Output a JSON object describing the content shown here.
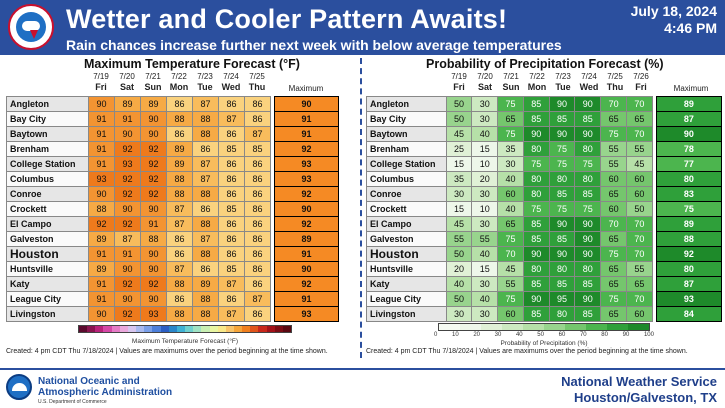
{
  "header": {
    "logo_text": "NATIONAL WEATHER SERVICE",
    "title": "Wetter and Cooler Pattern Awaits!",
    "subtitle": "Rain chances increase further next week with below average temperatures",
    "date": "July 18, 2024",
    "time": "4:46 PM"
  },
  "temp": {
    "title": "Maximum Temperature Forecast (°F)",
    "days": [
      {
        "date": "7/19",
        "day": "Fri"
      },
      {
        "date": "7/20",
        "day": "Sat"
      },
      {
        "date": "7/21",
        "day": "Sun"
      },
      {
        "date": "7/22",
        "day": "Mon"
      },
      {
        "date": "7/23",
        "day": "Tue"
      },
      {
        "date": "7/24",
        "day": "Wed"
      },
      {
        "date": "7/25",
        "day": "Thu"
      }
    ],
    "max_label": "Maximum",
    "rows": [
      {
        "city": "Angleton",
        "values": [
          "90",
          "89",
          "89",
          "86",
          "87",
          "86",
          "86"
        ],
        "max": "90"
      },
      {
        "city": "Bay City",
        "values": [
          "91",
          "91",
          "90",
          "88",
          "88",
          "87",
          "86"
        ],
        "max": "91"
      },
      {
        "city": "Baytown",
        "values": [
          "91",
          "90",
          "90",
          "86",
          "88",
          "86",
          "87"
        ],
        "max": "91"
      },
      {
        "city": "Brenham",
        "values": [
          "91",
          "92",
          "92",
          "89",
          "86",
          "85",
          "85"
        ],
        "max": "92"
      },
      {
        "city": "College Station",
        "values": [
          "91",
          "93",
          "92",
          "89",
          "87",
          "86",
          "86"
        ],
        "max": "93"
      },
      {
        "city": "Columbus",
        "values": [
          "93",
          "92",
          "92",
          "88",
          "87",
          "86",
          "86"
        ],
        "max": "93"
      },
      {
        "city": "Conroe",
        "values": [
          "90",
          "92",
          "92",
          "88",
          "88",
          "86",
          "86"
        ],
        "max": "92"
      },
      {
        "city": "Crockett",
        "values": [
          "88",
          "90",
          "90",
          "87",
          "86",
          "85",
          "86"
        ],
        "max": "90"
      },
      {
        "city": "El Campo",
        "values": [
          "92",
          "92",
          "91",
          "87",
          "88",
          "86",
          "86"
        ],
        "max": "92"
      },
      {
        "city": "Galveston",
        "values": [
          "89",
          "87",
          "88",
          "86",
          "87",
          "86",
          "86"
        ],
        "max": "89"
      },
      {
        "city": "Houston",
        "values": [
          "91",
          "91",
          "90",
          "86",
          "88",
          "86",
          "86"
        ],
        "max": "91"
      },
      {
        "city": "Huntsville",
        "values": [
          "89",
          "90",
          "90",
          "87",
          "86",
          "85",
          "86"
        ],
        "max": "90"
      },
      {
        "city": "Katy",
        "values": [
          "91",
          "92",
          "92",
          "88",
          "89",
          "87",
          "86"
        ],
        "max": "92"
      },
      {
        "city": "League City",
        "values": [
          "91",
          "90",
          "90",
          "86",
          "88",
          "86",
          "87"
        ],
        "max": "91"
      },
      {
        "city": "Livingston",
        "values": [
          "90",
          "92",
          "93",
          "88",
          "88",
          "87",
          "86"
        ],
        "max": "93"
      }
    ],
    "colorbar_label": "Maximum Temperature Forecast (°F)",
    "created": "Created: 4 pm CDT Thu 7/18/2024  |  Values are maximums over the period beginning at the time shown.",
    "colors": {
      "hot": "#f07f1f",
      "warm": "#f5a53b",
      "mild": "#f8c46a",
      "max": "#f58a24"
    }
  },
  "pop": {
    "title": "Probability of Precipitation Forecast (%)",
    "days": [
      {
        "date": "7/19",
        "day": "Fri"
      },
      {
        "date": "7/20",
        "day": "Sat"
      },
      {
        "date": "7/21",
        "day": "Sun"
      },
      {
        "date": "7/22",
        "day": "Mon"
      },
      {
        "date": "7/23",
        "day": "Tue"
      },
      {
        "date": "7/24",
        "day": "Wed"
      },
      {
        "date": "7/25",
        "day": "Thu"
      },
      {
        "date": "7/26",
        "day": "Fri"
      }
    ],
    "max_label": "Maximum",
    "rows": [
      {
        "city": "Angleton",
        "values": [
          "50",
          "30",
          "75",
          "85",
          "90",
          "90",
          "70",
          "70"
        ],
        "max": "89"
      },
      {
        "city": "Bay City",
        "values": [
          "50",
          "30",
          "65",
          "85",
          "85",
          "85",
          "65",
          "65"
        ],
        "max": "87"
      },
      {
        "city": "Baytown",
        "values": [
          "45",
          "40",
          "75",
          "90",
          "90",
          "90",
          "75",
          "70"
        ],
        "max": "90"
      },
      {
        "city": "Brenham",
        "values": [
          "25",
          "15",
          "35",
          "80",
          "75",
          "80",
          "55",
          "55"
        ],
        "max": "78"
      },
      {
        "city": "College Station",
        "values": [
          "15",
          "10",
          "30",
          "75",
          "75",
          "75",
          "55",
          "45"
        ],
        "max": "77"
      },
      {
        "city": "Columbus",
        "values": [
          "35",
          "20",
          "40",
          "80",
          "80",
          "80",
          "60",
          "60"
        ],
        "max": "80"
      },
      {
        "city": "Conroe",
        "values": [
          "30",
          "30",
          "60",
          "80",
          "85",
          "85",
          "65",
          "60"
        ],
        "max": "83"
      },
      {
        "city": "Crockett",
        "values": [
          "15",
          "10",
          "40",
          "75",
          "75",
          "75",
          "60",
          "50"
        ],
        "max": "75"
      },
      {
        "city": "El Campo",
        "values": [
          "45",
          "30",
          "65",
          "85",
          "90",
          "90",
          "70",
          "70"
        ],
        "max": "89"
      },
      {
        "city": "Galveston",
        "values": [
          "55",
          "55",
          "75",
          "85",
          "85",
          "90",
          "65",
          "70"
        ],
        "max": "88"
      },
      {
        "city": "Houston",
        "values": [
          "50",
          "40",
          "70",
          "90",
          "90",
          "90",
          "75",
          "70"
        ],
        "max": "92"
      },
      {
        "city": "Huntsville",
        "values": [
          "20",
          "15",
          "45",
          "80",
          "80",
          "80",
          "65",
          "55"
        ],
        "max": "80"
      },
      {
        "city": "Katy",
        "values": [
          "40",
          "30",
          "55",
          "85",
          "85",
          "85",
          "65",
          "65"
        ],
        "max": "87"
      },
      {
        "city": "League City",
        "values": [
          "50",
          "40",
          "75",
          "90",
          "95",
          "90",
          "75",
          "70"
        ],
        "max": "93"
      },
      {
        "city": "Livingston",
        "values": [
          "30",
          "30",
          "60",
          "85",
          "80",
          "85",
          "65",
          "60"
        ],
        "max": "84"
      }
    ],
    "colorbar_ticks": [
      "0",
      "10",
      "20",
      "30",
      "40",
      "50",
      "60",
      "70",
      "80",
      "90",
      "100"
    ],
    "colorbar_label": "Probability of Precipitation (%)",
    "created": "Created: 4 pm CDT Thu 7/18/2024  |  Values are maximums over the period beginning at the time shown.",
    "colors": {
      "max": "#0e7d1a"
    }
  },
  "footer": {
    "noaa_line1": "National Oceanic and",
    "noaa_line2": "Atmospheric Administration",
    "noaa_dept": "U.S. Department of Commerce",
    "nws_line1": "National Weather Service",
    "nws_line2": "Houston/Galveston, TX"
  }
}
